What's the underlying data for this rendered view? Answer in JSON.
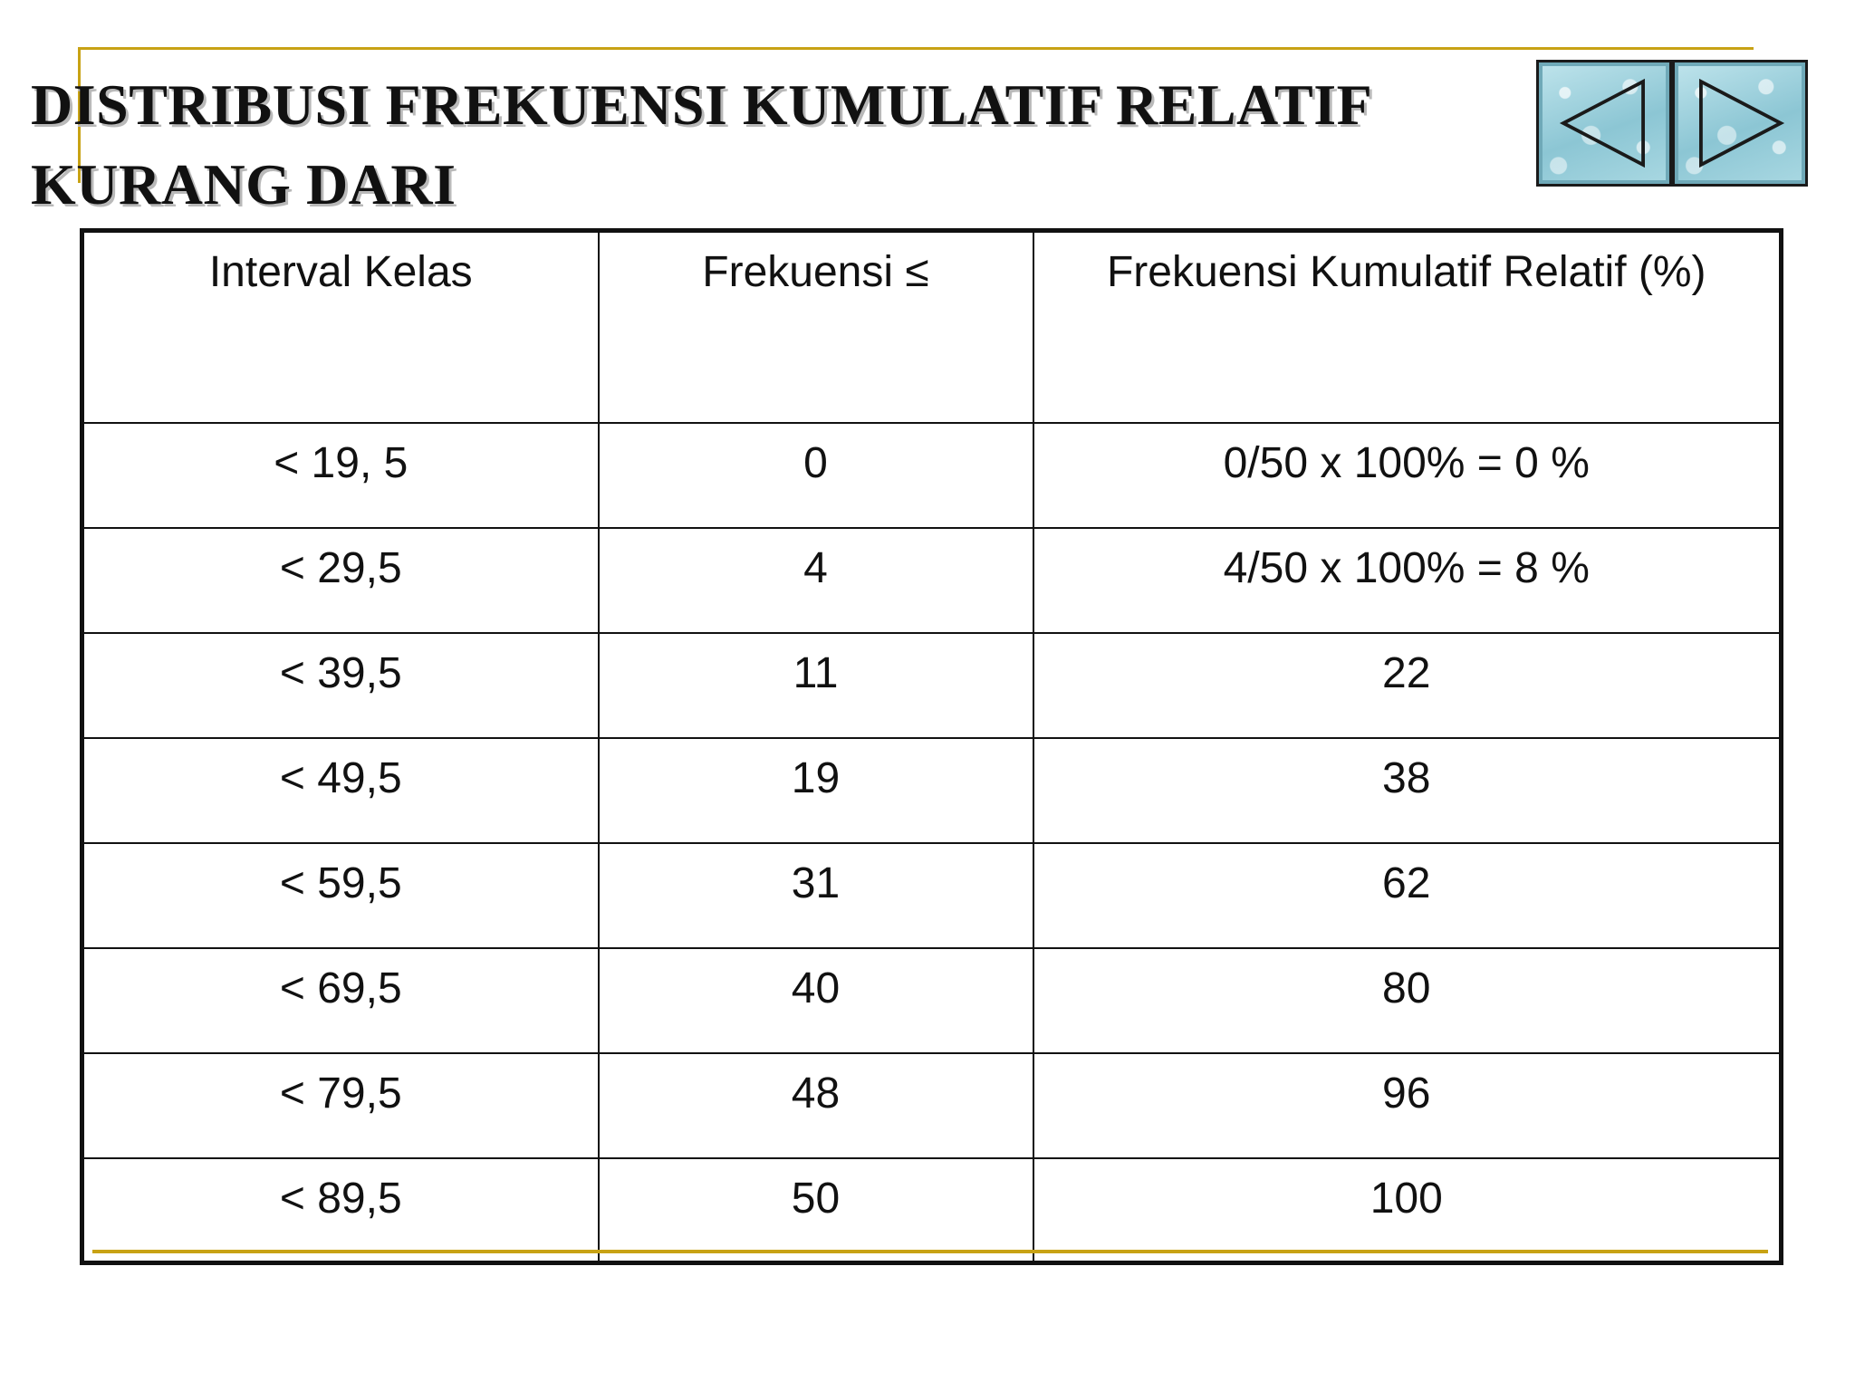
{
  "slide": {
    "title": "DISTRIBUSI FREKUENSI KUMULATIF RELATIF KURANG DARI"
  },
  "navigation": {
    "prev_icon": "triangle-left-icon",
    "next_icon": "triangle-right-icon"
  },
  "colors": {
    "accent_line": "#c8a214",
    "nav_button": "#8cc6d4"
  },
  "table": {
    "headers": [
      "Interval Kelas",
      "Frekuensi ≤",
      "Frekuensi Kumulatif Relatif (%)"
    ],
    "rows": [
      [
        "< 19, 5",
        "0",
        "0/50 x 100% = 0 %"
      ],
      [
        "< 29,5",
        "4",
        "4/50 x 100% = 8 %"
      ],
      [
        "< 39,5",
        "11",
        "22"
      ],
      [
        "< 49,5",
        "19",
        "38"
      ],
      [
        "< 59,5",
        "31",
        "62"
      ],
      [
        "< 69,5",
        "40",
        "80"
      ],
      [
        "< 79,5",
        "48",
        "96"
      ],
      [
        "< 89,5",
        "50",
        "100"
      ]
    ]
  }
}
